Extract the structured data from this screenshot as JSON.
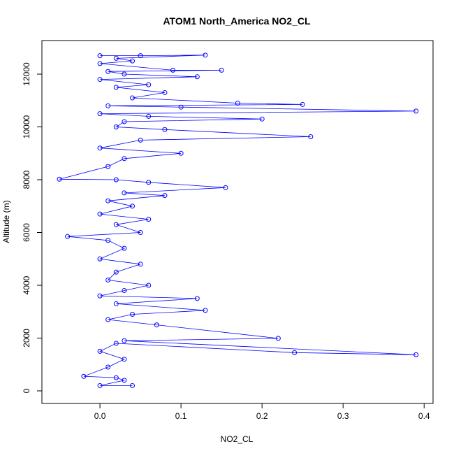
{
  "chart_data": {
    "type": "line",
    "title": "ATOM1 North_America NO2_CL",
    "xlabel": "NO2_CL",
    "ylabel": "Altitude (m)",
    "x": [
      0.0,
      0.05,
      0.13,
      0.02,
      0.04,
      0.0,
      0.09,
      0.15,
      0.01,
      0.03,
      0.12,
      0.0,
      0.06,
      0.02,
      0.08,
      0.04,
      0.17,
      0.25,
      0.01,
      0.1,
      0.39,
      0.0,
      0.06,
      0.2,
      0.03,
      0.02,
      0.08,
      0.26,
      0.05,
      0.0,
      0.1,
      0.03,
      0.01,
      -0.05,
      0.02,
      0.06,
      0.155,
      0.03,
      0.08,
      0.01,
      0.04,
      0.0,
      0.06,
      0.02,
      0.05,
      -0.04,
      0.01,
      0.03,
      0.0,
      0.05,
      0.02,
      0.01,
      0.06,
      0.03,
      0.0,
      0.12,
      0.02,
      0.13,
      0.04,
      0.01,
      0.07,
      0.22,
      0.03,
      0.39,
      0.24,
      0.02,
      0.0,
      0.03,
      0.01,
      -0.02,
      0.02,
      0.03,
      0.0,
      0.04
    ],
    "values": [
      12700,
      12700,
      12720,
      12600,
      12500,
      12400,
      12150,
      12150,
      12100,
      12000,
      11900,
      11800,
      11600,
      11500,
      11300,
      11100,
      10900,
      10850,
      10800,
      10750,
      10600,
      10500,
      10400,
      10300,
      10200,
      10000,
      9900,
      9630,
      9500,
      9200,
      9000,
      8800,
      8500,
      8020,
      8000,
      7900,
      7700,
      7500,
      7400,
      7200,
      7000,
      6700,
      6500,
      6300,
      6000,
      5850,
      5700,
      5400,
      5000,
      4800,
      4500,
      4200,
      4000,
      3800,
      3600,
      3500,
      3300,
      3050,
      2900,
      2700,
      2500,
      1990,
      1900,
      1370,
      1450,
      1800,
      1500,
      1200,
      900,
      550,
      500,
      400,
      200,
      200
    ],
    "color": "#0000ff",
    "xlim": [
      -0.0716,
      0.411
    ],
    "ylim": [
      -477,
      13272
    ],
    "xticks": [
      {
        "value": 0,
        "label": "0.0"
      },
      0.1,
      0.2,
      0.3,
      0.4
    ],
    "yticks": [
      0,
      2000,
      4000,
      6000,
      8000,
      10000,
      12000
    ]
  }
}
